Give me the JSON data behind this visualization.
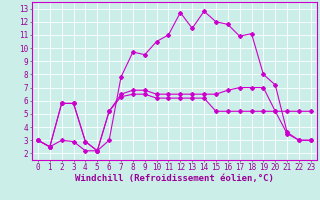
{
  "xlabel": "Windchill (Refroidissement éolien,°C)",
  "background_color": "#cceee8",
  "line_color": "#cc00cc",
  "grid_color": "#ffffff",
  "xlim": [
    -0.5,
    23.5
  ],
  "ylim": [
    1.5,
    13.5
  ],
  "xticks": [
    0,
    1,
    2,
    3,
    4,
    5,
    6,
    7,
    8,
    9,
    10,
    11,
    12,
    13,
    14,
    15,
    16,
    17,
    18,
    19,
    20,
    21,
    22,
    23
  ],
  "yticks": [
    2,
    3,
    4,
    5,
    6,
    7,
    8,
    9,
    10,
    11,
    12,
    13
  ],
  "line1_x": [
    0,
    1,
    2,
    3,
    4,
    5,
    6,
    7,
    8,
    9,
    10,
    11,
    12,
    13,
    14,
    15,
    16,
    17,
    18,
    19,
    20,
    21,
    22,
    23
  ],
  "line1_y": [
    3,
    2.5,
    3,
    2.9,
    2.2,
    2.2,
    3.0,
    7.8,
    9.7,
    9.5,
    10.5,
    11.0,
    12.7,
    11.5,
    12.8,
    12.0,
    11.8,
    10.9,
    11.1,
    8.0,
    7.2,
    3.6,
    3.0,
    3.0
  ],
  "line2_x": [
    0,
    1,
    2,
    3,
    4,
    5,
    6,
    7,
    8,
    9,
    10,
    11,
    12,
    13,
    14,
    15,
    16,
    17,
    18,
    19,
    20,
    21,
    22,
    23
  ],
  "line2_y": [
    3.0,
    2.5,
    5.8,
    5.8,
    2.9,
    2.2,
    5.2,
    6.3,
    6.5,
    6.5,
    6.2,
    6.2,
    6.2,
    6.2,
    6.2,
    5.2,
    5.2,
    5.2,
    5.2,
    5.2,
    5.2,
    5.2,
    5.2,
    5.2
  ],
  "line3_x": [
    0,
    1,
    2,
    3,
    4,
    5,
    6,
    7,
    8,
    9,
    10,
    11,
    12,
    13,
    14,
    15,
    16,
    17,
    18,
    19,
    20,
    21,
    22,
    23
  ],
  "line3_y": [
    3.0,
    2.5,
    5.8,
    5.8,
    2.9,
    2.2,
    5.2,
    6.5,
    6.8,
    6.8,
    6.5,
    6.5,
    6.5,
    6.5,
    6.5,
    6.5,
    6.8,
    7.0,
    7.0,
    7.0,
    5.2,
    3.5,
    3.0,
    3.0
  ],
  "xlabel_fontsize": 6.5,
  "tick_fontsize": 5.5,
  "fig_width": 3.2,
  "fig_height": 2.0,
  "dpi": 100
}
